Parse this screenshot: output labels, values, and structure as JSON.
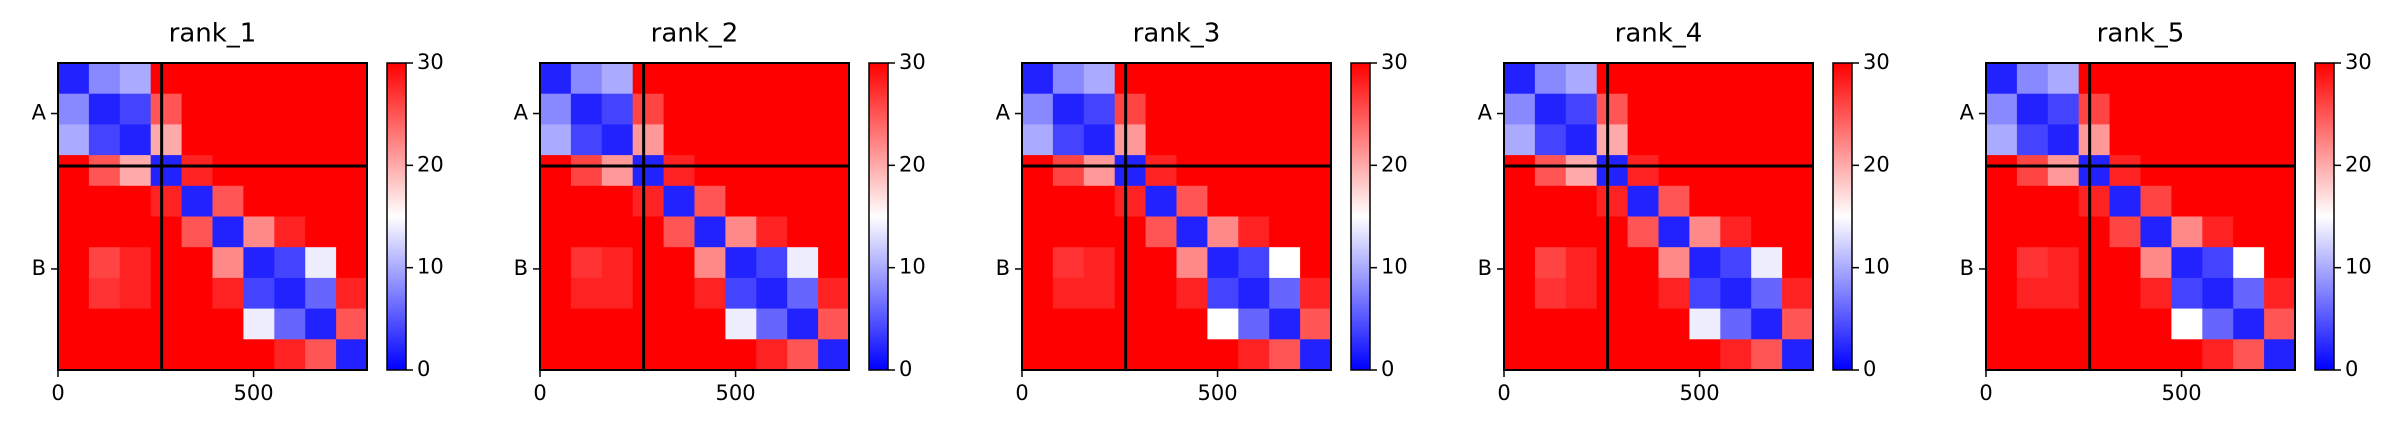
{
  "chart_data": [
    {
      "type": "heatmap",
      "title": "rank_1",
      "edges": [
        0,
        79,
        158,
        237,
        316,
        395,
        474,
        553,
        632,
        711,
        790
      ],
      "xlim": [
        0,
        790
      ],
      "ylim": [
        790,
        0
      ],
      "xticks": [
        0,
        500
      ],
      "yticks": [
        {
          "value": 130,
          "label": "A"
        },
        {
          "value": 530,
          "label": "B"
        }
      ],
      "boundaries": [
        265
      ],
      "clim": [
        0,
        30
      ],
      "cticks": [
        0,
        10,
        20,
        30
      ],
      "cmap": [
        "#0000ff",
        "#ffffff",
        "#ff0000"
      ],
      "matrix": [
        [
          2,
          8,
          10,
          30,
          30,
          30,
          30,
          30,
          30,
          30
        ],
        [
          8,
          2,
          4,
          25,
          30,
          30,
          30,
          30,
          30,
          30
        ],
        [
          10,
          4,
          2,
          20,
          30,
          30,
          30,
          30,
          30,
          30
        ],
        [
          30,
          25,
          20,
          2,
          28,
          30,
          30,
          30,
          30,
          30
        ],
        [
          30,
          30,
          30,
          28,
          2,
          25,
          30,
          30,
          30,
          30
        ],
        [
          30,
          30,
          30,
          30,
          25,
          2,
          22,
          28,
          30,
          30
        ],
        [
          30,
          26,
          28,
          30,
          30,
          22,
          2,
          4,
          14,
          30
        ],
        [
          30,
          27,
          28,
          30,
          30,
          28,
          4,
          2,
          6,
          28
        ],
        [
          30,
          30,
          30,
          30,
          30,
          30,
          14,
          6,
          2,
          25
        ],
        [
          30,
          30,
          30,
          30,
          30,
          30,
          30,
          28,
          25,
          2
        ]
      ]
    },
    {
      "type": "heatmap",
      "title": "rank_2",
      "edges": [
        0,
        79,
        158,
        237,
        316,
        395,
        474,
        553,
        632,
        711,
        790
      ],
      "xlim": [
        0,
        790
      ],
      "ylim": [
        790,
        0
      ],
      "xticks": [
        0,
        500
      ],
      "yticks": [
        {
          "value": 130,
          "label": "A"
        },
        {
          "value": 530,
          "label": "B"
        }
      ],
      "boundaries": [
        265
      ],
      "clim": [
        0,
        30
      ],
      "cticks": [
        0,
        10,
        20,
        30
      ],
      "cmap": [
        "#0000ff",
        "#ffffff",
        "#ff0000"
      ],
      "matrix": [
        [
          2,
          8,
          10,
          30,
          30,
          30,
          30,
          30,
          30,
          30
        ],
        [
          8,
          2,
          4,
          26,
          30,
          30,
          30,
          30,
          30,
          30
        ],
        [
          10,
          4,
          2,
          21,
          30,
          30,
          30,
          30,
          30,
          30
        ],
        [
          30,
          26,
          21,
          2,
          28,
          30,
          30,
          30,
          30,
          30
        ],
        [
          30,
          30,
          30,
          28,
          2,
          25,
          30,
          30,
          30,
          30
        ],
        [
          30,
          30,
          30,
          30,
          25,
          2,
          22,
          28,
          30,
          30
        ],
        [
          30,
          27,
          28,
          30,
          30,
          22,
          2,
          4,
          14,
          30
        ],
        [
          30,
          28,
          28,
          30,
          30,
          28,
          4,
          2,
          6,
          28
        ],
        [
          30,
          30,
          30,
          30,
          30,
          30,
          14,
          6,
          2,
          25
        ],
        [
          30,
          30,
          30,
          30,
          30,
          30,
          30,
          28,
          25,
          2
        ]
      ]
    },
    {
      "type": "heatmap",
      "title": "rank_3",
      "edges": [
        0,
        79,
        158,
        237,
        316,
        395,
        474,
        553,
        632,
        711,
        790
      ],
      "xlim": [
        0,
        790
      ],
      "ylim": [
        790,
        0
      ],
      "xticks": [
        0,
        500
      ],
      "yticks": [
        {
          "value": 130,
          "label": "A"
        },
        {
          "value": 530,
          "label": "B"
        }
      ],
      "boundaries": [
        265
      ],
      "clim": [
        0,
        30
      ],
      "cticks": [
        0,
        10,
        20,
        30
      ],
      "cmap": [
        "#0000ff",
        "#ffffff",
        "#ff0000"
      ],
      "matrix": [
        [
          2,
          8,
          10,
          30,
          30,
          30,
          30,
          30,
          30,
          30
        ],
        [
          8,
          2,
          4,
          26,
          30,
          30,
          30,
          30,
          30,
          30
        ],
        [
          10,
          4,
          2,
          21,
          30,
          30,
          30,
          30,
          30,
          30
        ],
        [
          30,
          26,
          21,
          2,
          28,
          30,
          30,
          30,
          30,
          30
        ],
        [
          30,
          30,
          30,
          28,
          2,
          25,
          30,
          30,
          30,
          30
        ],
        [
          30,
          30,
          30,
          30,
          25,
          2,
          22,
          28,
          30,
          30
        ],
        [
          30,
          27,
          28,
          30,
          30,
          22,
          2,
          4,
          15,
          30
        ],
        [
          30,
          28,
          28,
          30,
          30,
          28,
          4,
          2,
          6,
          28
        ],
        [
          30,
          30,
          30,
          30,
          30,
          30,
          15,
          6,
          2,
          25
        ],
        [
          30,
          30,
          30,
          30,
          30,
          30,
          30,
          28,
          25,
          2
        ]
      ]
    },
    {
      "type": "heatmap",
      "title": "rank_4",
      "edges": [
        0,
        79,
        158,
        237,
        316,
        395,
        474,
        553,
        632,
        711,
        790
      ],
      "xlim": [
        0,
        790
      ],
      "ylim": [
        790,
        0
      ],
      "xticks": [
        0,
        500
      ],
      "yticks": [
        {
          "value": 130,
          "label": "A"
        },
        {
          "value": 530,
          "label": "B"
        }
      ],
      "boundaries": [
        265
      ],
      "clim": [
        0,
        30
      ],
      "cticks": [
        0,
        10,
        20,
        30
      ],
      "cmap": [
        "#0000ff",
        "#ffffff",
        "#ff0000"
      ],
      "matrix": [
        [
          2,
          8,
          10,
          30,
          30,
          30,
          30,
          30,
          30,
          30
        ],
        [
          8,
          2,
          4,
          25,
          30,
          30,
          30,
          30,
          30,
          30
        ],
        [
          10,
          4,
          2,
          20,
          30,
          30,
          30,
          30,
          30,
          30
        ],
        [
          30,
          25,
          20,
          2,
          28,
          30,
          30,
          30,
          30,
          30
        ],
        [
          30,
          30,
          30,
          28,
          2,
          25,
          30,
          30,
          30,
          30
        ],
        [
          30,
          30,
          30,
          30,
          25,
          2,
          22,
          28,
          30,
          30
        ],
        [
          30,
          26,
          28,
          30,
          30,
          22,
          2,
          4,
          14,
          30
        ],
        [
          30,
          27,
          28,
          30,
          30,
          28,
          4,
          2,
          6,
          28
        ],
        [
          30,
          30,
          30,
          30,
          30,
          30,
          14,
          6,
          2,
          25
        ],
        [
          30,
          30,
          30,
          30,
          30,
          30,
          30,
          28,
          25,
          2
        ]
      ]
    },
    {
      "type": "heatmap",
      "title": "rank_5",
      "edges": [
        0,
        79,
        158,
        237,
        316,
        395,
        474,
        553,
        632,
        711,
        790
      ],
      "xlim": [
        0,
        790
      ],
      "ylim": [
        790,
        0
      ],
      "xticks": [
        0,
        500
      ],
      "yticks": [
        {
          "value": 130,
          "label": "A"
        },
        {
          "value": 530,
          "label": "B"
        }
      ],
      "boundaries": [
        265
      ],
      "clim": [
        0,
        30
      ],
      "cticks": [
        0,
        10,
        20,
        30
      ],
      "cmap": [
        "#0000ff",
        "#ffffff",
        "#ff0000"
      ],
      "matrix": [
        [
          2,
          8,
          10,
          30,
          30,
          30,
          30,
          30,
          30,
          30
        ],
        [
          8,
          2,
          4,
          26,
          30,
          30,
          30,
          30,
          30,
          30
        ],
        [
          10,
          4,
          2,
          21,
          30,
          30,
          30,
          30,
          30,
          30
        ],
        [
          30,
          26,
          21,
          2,
          28,
          30,
          30,
          30,
          30,
          30
        ],
        [
          30,
          30,
          30,
          28,
          2,
          26,
          30,
          30,
          30,
          30
        ],
        [
          30,
          30,
          30,
          30,
          26,
          2,
          22,
          28,
          30,
          30
        ],
        [
          30,
          27,
          28,
          30,
          30,
          22,
          2,
          4,
          15,
          30
        ],
        [
          30,
          28,
          28,
          30,
          30,
          28,
          4,
          2,
          6,
          28
        ],
        [
          30,
          30,
          30,
          30,
          30,
          30,
          15,
          6,
          2,
          25
        ],
        [
          30,
          30,
          30,
          30,
          30,
          30,
          30,
          28,
          25,
          2
        ]
      ]
    }
  ]
}
